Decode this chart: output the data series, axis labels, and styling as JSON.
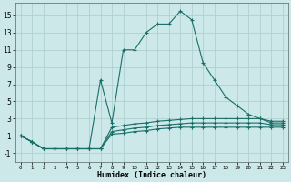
{
  "xlabel": "Humidex (Indice chaleur)",
  "bg_color": "#cce8e8",
  "grid_color": "#b0d0d0",
  "line_color": "#1a6e6a",
  "xlim": [
    -0.5,
    23.5
  ],
  "ylim": [
    -2,
    16.5
  ],
  "xticks": [
    0,
    1,
    2,
    3,
    4,
    5,
    6,
    7,
    8,
    9,
    10,
    11,
    12,
    13,
    14,
    15,
    16,
    17,
    18,
    19,
    20,
    21,
    22,
    23
  ],
  "yticks": [
    -1,
    1,
    3,
    5,
    7,
    9,
    11,
    13,
    15
  ],
  "lines": [
    {
      "x": [
        0,
        1,
        2,
        3,
        4,
        5,
        6,
        7,
        8,
        9,
        10,
        11,
        12,
        13,
        14,
        15,
        16,
        17,
        18,
        19,
        20,
        21,
        22,
        23
      ],
      "y": [
        1,
        0.3,
        -0.5,
        -0.5,
        -0.5,
        -0.5,
        -0.5,
        7.5,
        2.5,
        11,
        11,
        13,
        14,
        14,
        15.5,
        14.5,
        9.5,
        7.5,
        5.5,
        4.5,
        3.5,
        3.0,
        2.5,
        2.5
      ]
    },
    {
      "x": [
        0,
        1,
        2,
        3,
        4,
        5,
        6,
        7,
        8,
        9,
        10,
        11,
        12,
        13,
        14,
        15,
        16,
        17,
        18,
        19,
        20,
        21,
        22,
        23
      ],
      "y": [
        1,
        0.3,
        -0.5,
        -0.5,
        -0.5,
        -0.5,
        -0.5,
        -0.5,
        2.0,
        2.2,
        2.4,
        2.5,
        2.7,
        2.8,
        2.9,
        3.0,
        3.0,
        3.0,
        3.0,
        3.0,
        3.0,
        3.0,
        2.7,
        2.7
      ]
    },
    {
      "x": [
        0,
        1,
        2,
        3,
        4,
        5,
        6,
        7,
        8,
        9,
        10,
        11,
        12,
        13,
        14,
        15,
        16,
        17,
        18,
        19,
        20,
        21,
        22,
        23
      ],
      "y": [
        1,
        0.3,
        -0.5,
        -0.5,
        -0.5,
        -0.5,
        -0.5,
        -0.5,
        1.5,
        1.7,
        1.9,
        2.0,
        2.2,
        2.3,
        2.4,
        2.5,
        2.5,
        2.5,
        2.5,
        2.5,
        2.5,
        2.5,
        2.3,
        2.3
      ]
    },
    {
      "x": [
        0,
        1,
        2,
        3,
        4,
        5,
        6,
        7,
        8,
        9,
        10,
        11,
        12,
        13,
        14,
        15,
        16,
        17,
        18,
        19,
        20,
        21,
        22,
        23
      ],
      "y": [
        1,
        0.3,
        -0.5,
        -0.5,
        -0.5,
        -0.5,
        -0.5,
        -0.5,
        1.2,
        1.3,
        1.5,
        1.6,
        1.8,
        1.9,
        2.0,
        2.0,
        2.0,
        2.0,
        2.0,
        2.0,
        2.0,
        2.0,
        2.0,
        2.0
      ]
    }
  ]
}
